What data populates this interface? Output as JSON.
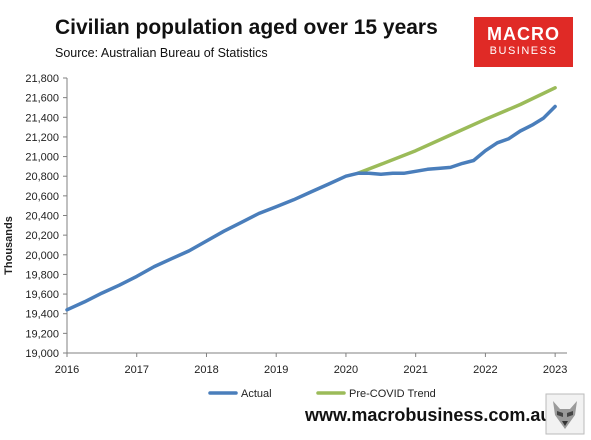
{
  "header": {
    "title": "Civilian population aged over 15 years",
    "subtitle": "Source: Australian Bureau of Statistics"
  },
  "logo": {
    "line1": "MACRO",
    "line2": "BUSINESS",
    "color": "#e02a26"
  },
  "footer": {
    "url": "www.macrobusiness.com.au"
  },
  "chart_data": {
    "type": "line",
    "ylabel": "Thousands",
    "xlabel": "",
    "ylim": [
      19000,
      21800
    ],
    "yticks": [
      19000,
      19200,
      19400,
      19600,
      19800,
      20000,
      20200,
      20400,
      20600,
      20800,
      21000,
      21200,
      21400,
      21600,
      21800
    ],
    "ytick_labels": [
      "19,000",
      "19,200",
      "19,400",
      "19,600",
      "19,800",
      "20,000",
      "20,200",
      "20,400",
      "20,600",
      "20,800",
      "21,000",
      "21,200",
      "21,400",
      "21,600",
      "21,800"
    ],
    "xlim": [
      2016,
      2023.17
    ],
    "xticks": [
      2016,
      2017,
      2018,
      2019,
      2020,
      2021,
      2022,
      2023
    ],
    "xtick_labels": [
      "2016",
      "2017",
      "2018",
      "2019",
      "2020",
      "2021",
      "2022",
      "2023"
    ],
    "grid": false,
    "legend_position": "bottom",
    "series": [
      {
        "name": "Actual",
        "color": "#4a7ebb",
        "x": [
          2016.0,
          2016.25,
          2016.5,
          2016.75,
          2017.0,
          2017.25,
          2017.5,
          2017.75,
          2018.0,
          2018.25,
          2018.5,
          2018.75,
          2019.0,
          2019.25,
          2019.5,
          2019.75,
          2020.0,
          2020.17,
          2020.33,
          2020.5,
          2020.67,
          2020.83,
          2021.0,
          2021.17,
          2021.33,
          2021.5,
          2021.67,
          2021.83,
          2022.0,
          2022.17,
          2022.33,
          2022.5,
          2022.67,
          2022.83,
          2023.0
        ],
        "values": [
          19440,
          19520,
          19610,
          19690,
          19780,
          19880,
          19960,
          20040,
          20140,
          20240,
          20330,
          20420,
          20490,
          20560,
          20640,
          20720,
          20800,
          20830,
          20830,
          20820,
          20830,
          20830,
          20850,
          20870,
          20880,
          20890,
          20930,
          20960,
          21060,
          21140,
          21180,
          21260,
          21320,
          21390,
          21510
        ]
      },
      {
        "name": "Pre-COVID Trend",
        "color": "#9bbb59",
        "x": [
          2020.17,
          2020.5,
          2021.0,
          2021.5,
          2022.0,
          2022.5,
          2023.0
        ],
        "values": [
          20830,
          20920,
          21060,
          21220,
          21380,
          21530,
          21700
        ]
      }
    ]
  }
}
